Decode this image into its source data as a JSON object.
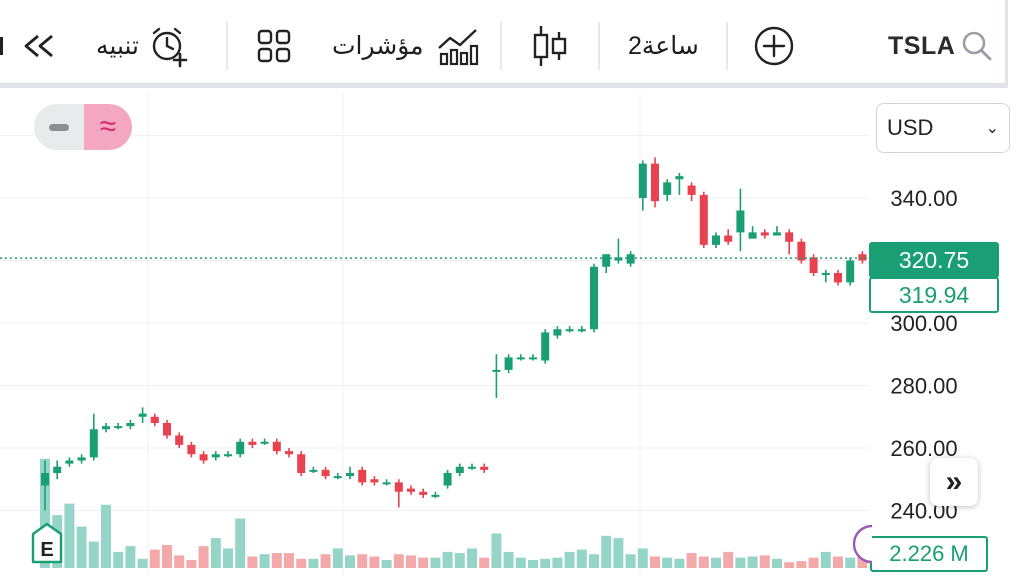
{
  "toolbar": {
    "symbol": "TSLA",
    "interval": "2ساعة",
    "indicators": "مؤشرات",
    "alert": "تنبيه"
  },
  "currency": "USD",
  "price_axis": {
    "labels": [
      "340.00",
      "300.00",
      "280.00",
      "260.00",
      "240.00"
    ],
    "live_price": "320.75",
    "prev_price": "319.94",
    "volume": "2.226 M"
  },
  "colors": {
    "up": "#1a9e74",
    "down": "#e8414f",
    "vol_up": "#95d5c8",
    "vol_down": "#f3a9a9",
    "pink": "#f3a7c1"
  },
  "chart_data": {
    "type": "candlestick",
    "ylim": [
      232,
      362
    ],
    "candles": [
      [
        248,
        252,
        240,
        256
      ],
      [
        252,
        254,
        250,
        256
      ],
      [
        255,
        256,
        254,
        257
      ],
      [
        256,
        257,
        255,
        258
      ],
      [
        257,
        266,
        256,
        271
      ],
      [
        266,
        267,
        265,
        268
      ],
      [
        267,
        267,
        266,
        268
      ],
      [
        267,
        268,
        266,
        269
      ],
      [
        270,
        271,
        268,
        273
      ],
      [
        270,
        268,
        267,
        271
      ],
      [
        268,
        264,
        263,
        269
      ],
      [
        264,
        261,
        260,
        265
      ],
      [
        261,
        258,
        257,
        262
      ],
      [
        258,
        256,
        255,
        259
      ],
      [
        257,
        258,
        256,
        259
      ],
      [
        258,
        258,
        257,
        259
      ],
      [
        258,
        262,
        257,
        263
      ],
      [
        262,
        261,
        260,
        263
      ],
      [
        262,
        262,
        261,
        263
      ],
      [
        262,
        259,
        258,
        263
      ],
      [
        259,
        258,
        257,
        260
      ],
      [
        258,
        252,
        251,
        259
      ],
      [
        253,
        253,
        252,
        254
      ],
      [
        253,
        251,
        250,
        254
      ],
      [
        251,
        251,
        250,
        252
      ],
      [
        251,
        252,
        250,
        254
      ],
      [
        253,
        249,
        248,
        254
      ],
      [
        250,
        249,
        248,
        251
      ],
      [
        249,
        249,
        248,
        250
      ],
      [
        249,
        246,
        241,
        250
      ],
      [
        247,
        246,
        245,
        248
      ],
      [
        246,
        245,
        244,
        247
      ],
      [
        245,
        245,
        244,
        246
      ],
      [
        248,
        252,
        247,
        253
      ],
      [
        252,
        254,
        251,
        255
      ],
      [
        254,
        254,
        253,
        255
      ],
      [
        254,
        253,
        252,
        255
      ],
      [
        285,
        285,
        276,
        290
      ],
      [
        285,
        289,
        284,
        290
      ],
      [
        289,
        289,
        288,
        290
      ],
      [
        289,
        289,
        288,
        290
      ],
      [
        288,
        297,
        287,
        298
      ],
      [
        296,
        298,
        295,
        299
      ],
      [
        298,
        298,
        297,
        299
      ],
      [
        298,
        298,
        297,
        299
      ],
      [
        298,
        318,
        297,
        319
      ],
      [
        318,
        322,
        316,
        322
      ],
      [
        320,
        321,
        319,
        327
      ],
      [
        319,
        322,
        318,
        323
      ],
      [
        340,
        351,
        336,
        352
      ],
      [
        351,
        339,
        337,
        353
      ],
      [
        341,
        345,
        339,
        346
      ],
      [
        346,
        347,
        341,
        348
      ],
      [
        344,
        341,
        339,
        345
      ],
      [
        341,
        325,
        324,
        342
      ],
      [
        325,
        328,
        324,
        329
      ],
      [
        328,
        326,
        325,
        330
      ],
      [
        329,
        336,
        323,
        343
      ],
      [
        327,
        329,
        327,
        331
      ],
      [
        329,
        328,
        327,
        330
      ],
      [
        328,
        329,
        328,
        331
      ],
      [
        329,
        326,
        322,
        330
      ],
      [
        326,
        320,
        319,
        327
      ],
      [
        321,
        316,
        315,
        322
      ],
      [
        316,
        316,
        313,
        317
      ],
      [
        316,
        313,
        312,
        317
      ],
      [
        313,
        320,
        312,
        321
      ],
      [
        322,
        320,
        319,
        323
      ],
      [
        320,
        320,
        318,
        321
      ],
      [
        319,
        320,
        319,
        321
      ]
    ],
    "volumes": [
      95,
      46,
      56,
      36,
      23,
      55,
      14,
      19,
      8,
      16,
      20,
      11,
      7,
      19,
      26,
      17,
      43,
      10,
      12,
      13,
      13,
      8,
      8,
      12,
      17,
      11,
      12,
      10,
      7,
      12,
      11,
      9,
      9,
      14,
      13,
      17,
      9,
      30,
      14,
      9,
      7,
      8,
      9,
      14,
      16,
      12,
      28,
      26,
      12,
      17,
      10,
      9,
      8,
      13,
      10,
      9,
      14,
      9,
      10,
      11,
      8,
      5,
      6,
      9,
      14,
      10,
      9,
      13,
      8,
      11
    ]
  }
}
